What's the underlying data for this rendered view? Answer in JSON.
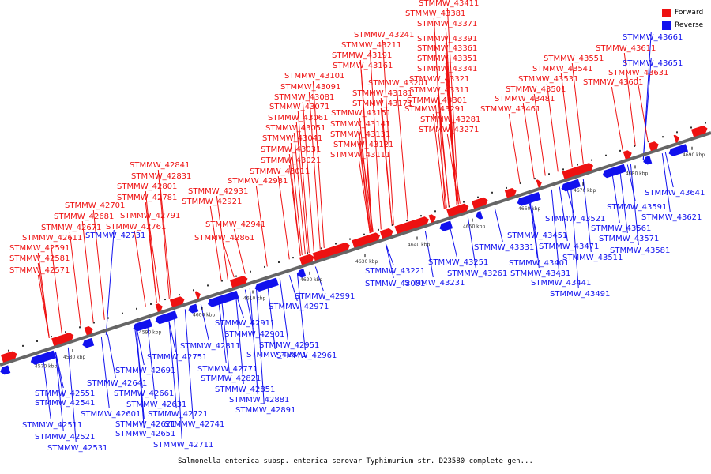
{
  "title": "Salmonella enterica subsp. enterica serovar Typhimurium str. D23580 complete gen...",
  "legend": [
    {
      "label": "Forward",
      "color": "#ee1111"
    },
    {
      "label": "Reverse",
      "color": "#1111ee"
    }
  ],
  "ticks": [
    "4570 kbp",
    "4580 kbp",
    "4590 kbp",
    "4600 kbp",
    "4610 kbp",
    "4620 kbp",
    "4630 kbp",
    "4640 kbp",
    "4650 kbp",
    "4660 kbp",
    "4670 kbp",
    "4680 kbp",
    "4690 kbp"
  ],
  "forward_genes": [
    "STMMW_42571",
    "STMMW_42581",
    "STMMW_42591",
    "STMMW_42611",
    "STMMW_42671",
    "STMMW_42681",
    "STMMW_42701",
    "STMMW_42761",
    "STMMW_42791",
    "STMMW_42781",
    "STMMW_42801",
    "STMMW_42831",
    "STMMW_42841",
    "STMMW_42861",
    "STMMW_42921",
    "STMMW_42931",
    "STMMW_42941",
    "STMMW_42981",
    "STMMW_43011",
    "STMMW_43021",
    "STMMW_43031",
    "STMMW_43041",
    "STMMW_43051",
    "STMMW_43061",
    "STMMW_43071",
    "STMMW_43081",
    "STMMW_43091",
    "STMMW_43101",
    "STMMW_43111",
    "STMMW_43121",
    "STMMW_43131",
    "STMMW_43141",
    "STMMW_43151",
    "STMMW_43161",
    "STMMW_43171",
    "STMMW_43181",
    "STMMW_43191",
    "STMMW_43201",
    "STMMW_43211",
    "STMMW_43241",
    "STMMW_43271",
    "STMMW_43281",
    "STMMW_43291",
    "STMMW_43301",
    "STMMW_43311",
    "STMMW_43321",
    "STMMW_43341",
    "STMMW_43351",
    "STMMW_43361",
    "STMMW_43371",
    "STMMW_43381",
    "STMMW_43391",
    "STMMW_43411",
    "STMMW_43461",
    "STMMW_43481",
    "STMMW_43501",
    "STMMW_43531",
    "STMMW_43541",
    "STMMW_43551",
    "STMMW_43601",
    "STMMW_43611",
    "STMMW_43631"
  ],
  "reverse_genes": [
    "STMMW_42511",
    "STMMW_42521",
    "STMMW_42531",
    "STMMW_42541",
    "STMMW_42551",
    "STMMW_42601",
    "STMMW_42621",
    "STMMW_42631",
    "STMMW_42641",
    "STMMW_42651",
    "STMMW_42661",
    "STMMW_42691",
    "STMMW_42711",
    "STMMW_42721",
    "STMMW_42731",
    "STMMW_42741",
    "STMMW_42751",
    "STMMW_42771",
    "STMMW_42811",
    "STMMW_42821",
    "STMMW_42851",
    "STMMW_42871",
    "STMMW_42881",
    "STMMW_42891",
    "STMMW_42901",
    "STMMW_42911",
    "STMMW_42951",
    "STMMW_42961",
    "STMMW_42971",
    "STMMW_42991",
    "STMMW_43001",
    "STMMW_43221",
    "STMMW_43231",
    "STMMW_43251",
    "STMMW_43261",
    "STMMW_43331",
    "STMMW_43401",
    "STMMW_43431",
    "STMMW_43441",
    "STMMW_43451",
    "STMMW_43471",
    "STMMW_43491",
    "STMMW_43511",
    "STMMW_43521",
    "STMMW_43561",
    "STMMW_43571",
    "STMMW_43581",
    "STMMW_43591",
    "STMMW_43621",
    "STMMW_43641",
    "STMMW_43651",
    "STMMW_43661"
  ]
}
